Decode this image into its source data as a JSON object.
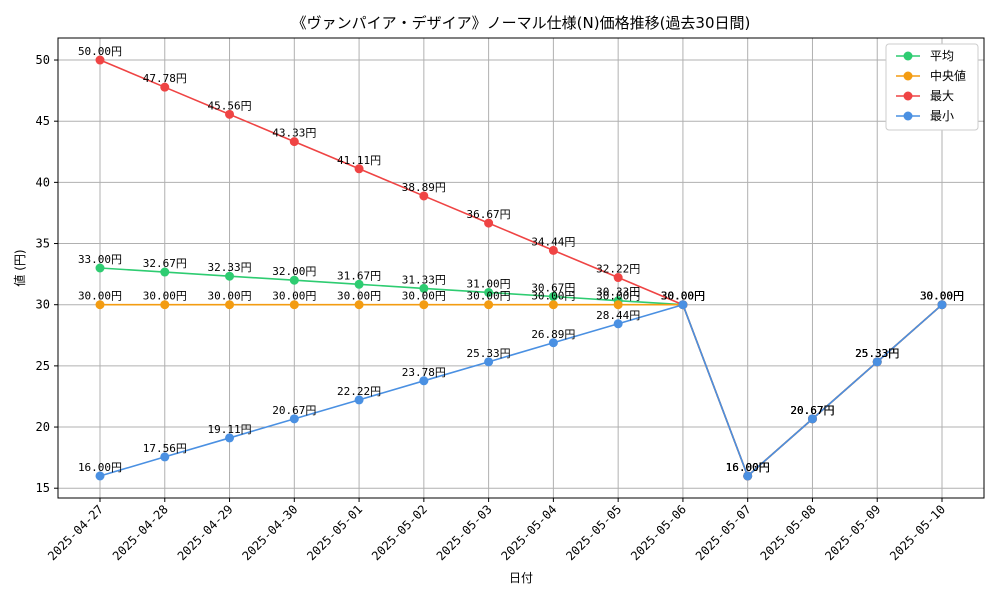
{
  "chart_data": {
    "type": "line",
    "title": "《ヴァンパイア・デザイア》ノーマル仕様(N)価格推移(過去30日間)",
    "xlabel": "日付",
    "ylabel": "値 (円)",
    "ylim": [
      14.2,
      51.8
    ],
    "y_ticks": [
      15,
      20,
      25,
      30,
      35,
      40,
      45,
      50
    ],
    "grid": true,
    "legend_position": "top-right",
    "value_suffix": "円",
    "categories": [
      "2025-04-27",
      "2025-04-28",
      "2025-04-29",
      "2025-04-30",
      "2025-05-01",
      "2025-05-02",
      "2025-05-03",
      "2025-05-04",
      "2025-05-05",
      "2025-05-06",
      "2025-05-07",
      "2025-05-08",
      "2025-05-09",
      "2025-05-10"
    ],
    "series": [
      {
        "name": "平均",
        "color": "#2ecc71",
        "values": [
          33.0,
          32.67,
          32.33,
          32.0,
          31.67,
          31.33,
          31.0,
          30.67,
          30.33,
          30.0,
          16.0,
          20.67,
          25.33,
          30.0
        ]
      },
      {
        "name": "中央値",
        "color": "#f39c12",
        "values": [
          30.0,
          30.0,
          30.0,
          30.0,
          30.0,
          30.0,
          30.0,
          30.0,
          30.0,
          30.0,
          16.0,
          20.67,
          25.33,
          30.0
        ]
      },
      {
        "name": "最大",
        "color": "#ef4444",
        "values": [
          50.0,
          47.78,
          45.56,
          43.33,
          41.11,
          38.89,
          36.67,
          34.44,
          32.22,
          30.0,
          16.0,
          20.67,
          25.33,
          30.0
        ]
      },
      {
        "name": "最小",
        "color": "#4a90e2",
        "values": [
          16.0,
          17.56,
          19.11,
          20.67,
          22.22,
          23.78,
          25.33,
          26.89,
          28.44,
          30.0,
          16.0,
          20.67,
          25.33,
          30.0
        ]
      }
    ]
  }
}
